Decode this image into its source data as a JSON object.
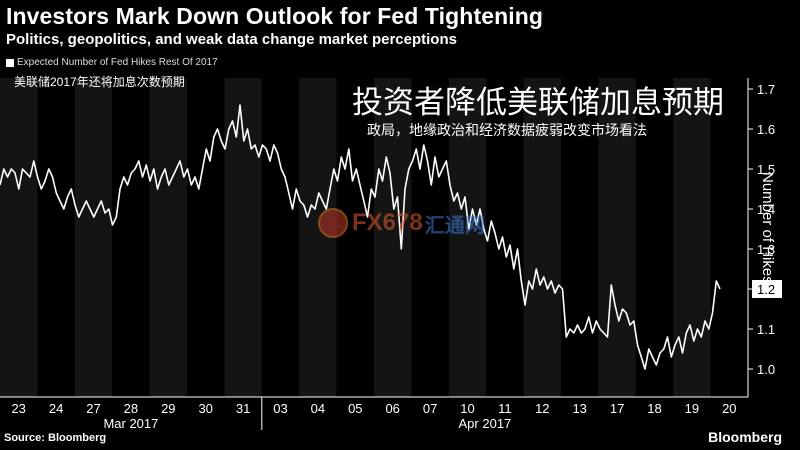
{
  "title": "Investors Mark Down Outlook for Fed Tightening",
  "subtitle": "Politics, geopolitics, and weak data change market perceptions",
  "cn_title": "投资者降低美联储加息预期",
  "cn_subtitle": "政局，地缘政治和经济数据疲弱改变市场看法",
  "legend": {
    "label": "Expected Number of Fed Hikes Rest Of 2017",
    "label_cn": "美联储2017年还将加息次数预期",
    "color": "#ffffff"
  },
  "source": "Source: Bloomberg",
  "brand": "Bloomberg",
  "watermark": {
    "text": "FX678",
    "text2": "汇通网"
  },
  "chart_data": {
    "type": "line",
    "ylabel": "Number of Hikes",
    "ylim": [
      0.95,
      1.75
    ],
    "yticks": [
      "1.0",
      "1.1",
      "1.2",
      "1.3",
      "1.4",
      "1.5",
      "1.6",
      "1.7"
    ],
    "last_value_label": "1.2",
    "day_labels": [
      "23",
      "24",
      "27",
      "28",
      "29",
      "30",
      "31",
      "03",
      "04",
      "05",
      "06",
      "07",
      "10",
      "11",
      "12",
      "13",
      "17",
      "18",
      "19",
      "20"
    ],
    "month_labels": [
      "Mar 2017",
      "Apr 2017"
    ],
    "series": [
      {
        "name": "Expected Number of Fed Hikes Rest Of 2017",
        "values": [
          1.46,
          1.5,
          1.48,
          1.5,
          1.49,
          1.45,
          1.5,
          1.49,
          1.48,
          1.52,
          1.48,
          1.45,
          1.47,
          1.5,
          1.48,
          1.44,
          1.42,
          1.4,
          1.43,
          1.45,
          1.41,
          1.38,
          1.4,
          1.42,
          1.4,
          1.38,
          1.4,
          1.42,
          1.39,
          1.4,
          1.36,
          1.38,
          1.45,
          1.48,
          1.46,
          1.49,
          1.5,
          1.52,
          1.48,
          1.51,
          1.47,
          1.5,
          1.45,
          1.48,
          1.5,
          1.46,
          1.48,
          1.5,
          1.52,
          1.48,
          1.5,
          1.46,
          1.48,
          1.45,
          1.5,
          1.55,
          1.52,
          1.58,
          1.6,
          1.57,
          1.55,
          1.6,
          1.62,
          1.58,
          1.66,
          1.57,
          1.6,
          1.55,
          1.56,
          1.53,
          1.56,
          1.55,
          1.52,
          1.56,
          1.54,
          1.5,
          1.48,
          1.44,
          1.4,
          1.45,
          1.42,
          1.41,
          1.38,
          1.41,
          1.4,
          1.44,
          1.42,
          1.4,
          1.45,
          1.5,
          1.47,
          1.53,
          1.5,
          1.55,
          1.47,
          1.5,
          1.46,
          1.42,
          1.38,
          1.45,
          1.43,
          1.5,
          1.47,
          1.53,
          1.49,
          1.4,
          1.43,
          1.3,
          1.45,
          1.5,
          1.52,
          1.55,
          1.5,
          1.56,
          1.52,
          1.46,
          1.53,
          1.48,
          1.5,
          1.52,
          1.46,
          1.42,
          1.44,
          1.4,
          1.43,
          1.35,
          1.4,
          1.36,
          1.4,
          1.35,
          1.32,
          1.37,
          1.34,
          1.3,
          1.33,
          1.28,
          1.31,
          1.25,
          1.3,
          1.22,
          1.16,
          1.22,
          1.2,
          1.25,
          1.21,
          1.23,
          1.2,
          1.22,
          1.19,
          1.21,
          1.2,
          1.08,
          1.1,
          1.09,
          1.11,
          1.09,
          1.1,
          1.13,
          1.09,
          1.12,
          1.1,
          1.09,
          1.08,
          1.21,
          1.16,
          1.12,
          1.15,
          1.14,
          1.11,
          1.12,
          1.06,
          1.03,
          1.0,
          1.05,
          1.03,
          1.01,
          1.04,
          1.05,
          1.08,
          1.03,
          1.06,
          1.08,
          1.04,
          1.09,
          1.11,
          1.07,
          1.1,
          1.08,
          1.12,
          1.1,
          1.14,
          1.22,
          1.2
        ]
      }
    ]
  }
}
